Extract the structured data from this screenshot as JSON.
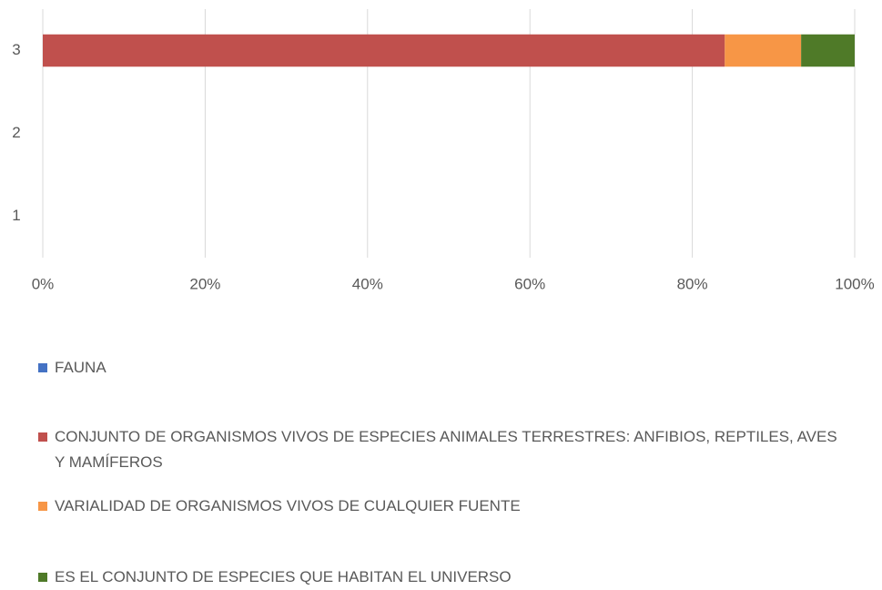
{
  "chart_data": {
    "type": "bar",
    "orientation": "horizontal",
    "stacked": "percent",
    "categories": [
      "1",
      "2",
      "3"
    ],
    "series": [
      {
        "name": "FAUNA",
        "color": "#4472c4",
        "values": [
          null,
          null,
          0
        ]
      },
      {
        "name": "CONJUNTO DE ORGANISMOS VIVOS DE ESPECIES ANIMALES TERRESTRES: ANFIBIOS, REPTILES, AVES Y MAMÍFEROS",
        "color": "#c0504d",
        "values": [
          null,
          null,
          84
        ]
      },
      {
        "name": "VARIALIDAD DE ORGANISMOS VIVOS DE CUALQUIER FUENTE",
        "color": "#f79646",
        "values": [
          null,
          null,
          9.4
        ]
      },
      {
        "name": "ES EL CONJUNTO DE ESPECIES  QUE HABITAN EL UNIVERSO",
        "color": "#4f7a28",
        "values": [
          null,
          null,
          6.6
        ]
      }
    ],
    "xlim": [
      0,
      100
    ],
    "xticks": [
      {
        "value": 0,
        "label": "0%"
      },
      {
        "value": 20,
        "label": "20%"
      },
      {
        "value": 40,
        "label": "40%"
      },
      {
        "value": 60,
        "label": "60%"
      },
      {
        "value": 80,
        "label": "80%"
      },
      {
        "value": 100,
        "label": "100%"
      }
    ],
    "grid": true,
    "legend": "bottom"
  }
}
